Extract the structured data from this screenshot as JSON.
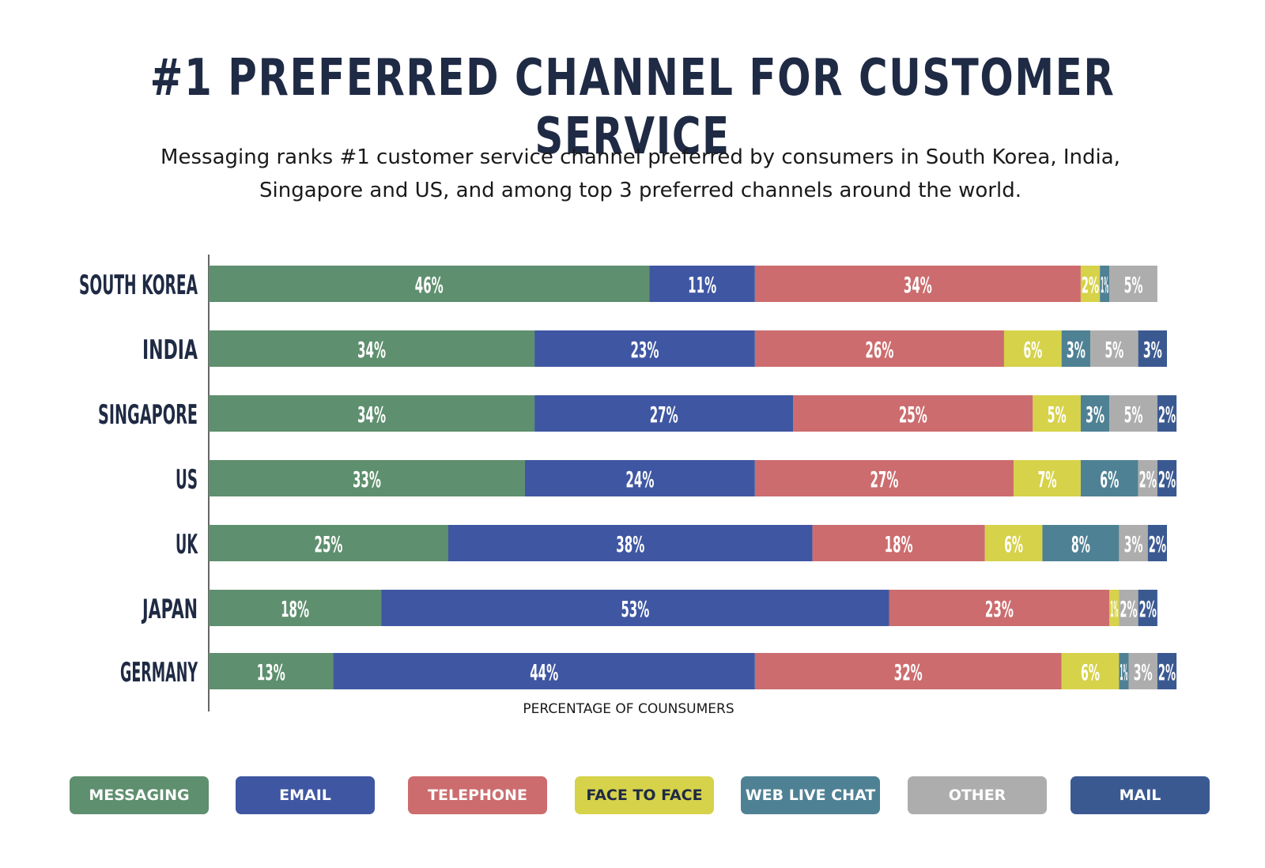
{
  "title": "#1 PREFERRED CHANNEL FOR CUSTOMER SERVICE",
  "subtitle_line1": "Messaging ranks #1 customer service channel preferred by consumers in South Korea, India,",
  "subtitle_line2": "Singapore and US, and among top 3 preferred channels around the world.",
  "chart_data": {
    "type": "bar",
    "orientation": "horizontal",
    "stacked": true,
    "categories": [
      "SOUTH KOREA",
      "INDIA",
      "SINGAPORE",
      "US",
      "UK",
      "JAPAN",
      "GERMANY"
    ],
    "series": [
      {
        "name": "MESSAGING",
        "color": "#5e8f6e",
        "values": [
          46,
          34,
          34,
          33,
          25,
          18,
          13
        ]
      },
      {
        "name": "EMAIL",
        "color": "#3f56a2",
        "values": [
          11,
          23,
          27,
          24,
          38,
          53,
          44
        ]
      },
      {
        "name": "TELEPHONE",
        "color": "#cc6c6e",
        "values": [
          34,
          26,
          25,
          27,
          18,
          23,
          32
        ]
      },
      {
        "name": "FACE TO FACE",
        "color": "#d6d24a",
        "values": [
          2,
          6,
          5,
          7,
          6,
          1,
          6
        ]
      },
      {
        "name": "WEB LIVE CHAT",
        "color": "#4f8194",
        "values": [
          1,
          3,
          3,
          6,
          8,
          0,
          1
        ]
      },
      {
        "name": "OTHER",
        "color": "#adadad",
        "values": [
          5,
          5,
          5,
          2,
          3,
          2,
          3
        ]
      },
      {
        "name": "MAIL",
        "color": "#3b5991",
        "values": [
          0,
          3,
          2,
          2,
          2,
          2,
          2
        ]
      }
    ],
    "xlabel": "PERCENTAGE OF COUNSUMERS",
    "ylabel": "",
    "xlim": [
      0,
      100
    ],
    "grid": false,
    "legend": "bottom"
  }
}
